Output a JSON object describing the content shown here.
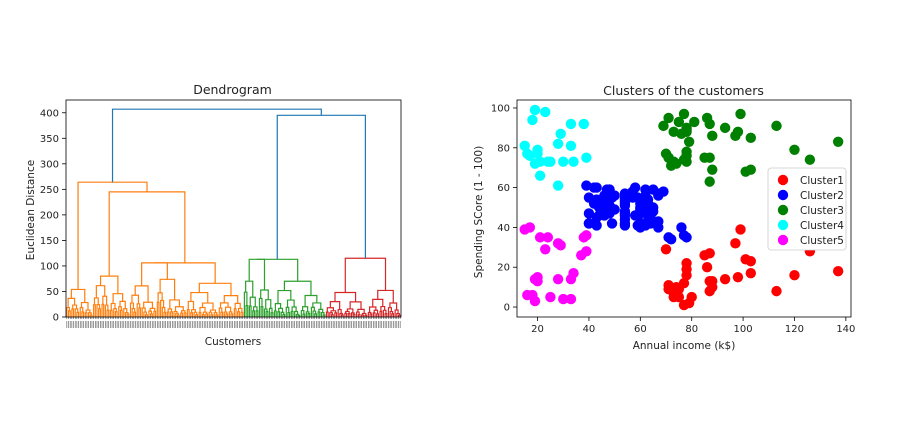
{
  "chart_data": [
    {
      "type": "dendrogram",
      "title": "Dendrogram",
      "xlabel": "Customers",
      "ylabel": "Euclidean Distance",
      "ylim": [
        0,
        425
      ],
      "yticks": [
        0,
        50,
        100,
        150,
        200,
        250,
        300,
        350,
        400
      ],
      "leaf_count": 200,
      "colors": {
        "orange": "#ff7f0e",
        "green": "#2ca02c",
        "red": "#d62728",
        "link": "#1f77b4"
      },
      "top_merges": [
        {
          "height": 407,
          "joins": [
            "orange-group",
            "green+red-group"
          ]
        },
        {
          "height": 395,
          "joins": [
            "green-group",
            "red-group"
          ]
        },
        {
          "height": 264,
          "joins": [
            "orange-left",
            "orange-right"
          ]
        },
        {
          "height": 245,
          "joins": [
            "orange-mid",
            "orange-right-right"
          ]
        },
        {
          "height": 113,
          "joins": [
            "green-left",
            "green-right"
          ]
        },
        {
          "height": 115,
          "joins": [
            "red-left",
            "red-right"
          ]
        }
      ]
    },
    {
      "type": "scatter",
      "title": "Clusters of the customers",
      "xlabel": "Annual income (k$)",
      "ylabel": "Spending SCore (1 - 100)",
      "xlim": [
        12,
        142
      ],
      "ylim": [
        -5,
        104
      ],
      "xticks": [
        20,
        40,
        60,
        80,
        100,
        120,
        140
      ],
      "yticks": [
        0,
        20,
        40,
        60,
        80,
        100
      ],
      "legend_position": "center-right",
      "series": [
        {
          "name": "Cluster1",
          "color": "#ff0000",
          "points": [
            [
              70,
              29
            ],
            [
              71,
              11
            ],
            [
              71,
              9
            ],
            [
              73,
              5
            ],
            [
              73,
              7
            ],
            [
              74,
              10
            ],
            [
              75,
              5
            ],
            [
              75,
              9
            ],
            [
              77,
              12
            ],
            [
              77,
              1
            ],
            [
              78,
              16
            ],
            [
              78,
              19
            ],
            [
              78,
              22
            ],
            [
              79,
              2
            ],
            [
              80,
              5
            ],
            [
              85,
              26
            ],
            [
              86,
              20
            ],
            [
              87,
              8
            ],
            [
              87,
              27
            ],
            [
              87,
              13
            ],
            [
              88,
              10
            ],
            [
              88,
              13
            ],
            [
              93,
              14
            ],
            [
              97,
              32
            ],
            [
              98,
              15
            ],
            [
              99,
              39
            ],
            [
              101,
              24
            ],
            [
              103,
              17
            ],
            [
              103,
              23
            ],
            [
              113,
              8
            ],
            [
              120,
              16
            ],
            [
              126,
              28
            ],
            [
              137,
              18
            ]
          ]
        },
        {
          "name": "Cluster2",
          "color": "#0000ff",
          "points": [
            [
              39,
              61
            ],
            [
              40,
              55
            ],
            [
              40,
              47
            ],
            [
              40,
              42
            ],
            [
              40,
              42
            ],
            [
              42,
              52
            ],
            [
              42,
              60
            ],
            [
              43,
              54
            ],
            [
              43,
              60
            ],
            [
              43,
              45
            ],
            [
              43,
              41
            ],
            [
              44,
              50
            ],
            [
              44,
              46
            ],
            [
              46,
              51
            ],
            [
              46,
              46
            ],
            [
              46,
              56
            ],
            [
              46,
              55
            ],
            [
              47,
              52
            ],
            [
              47,
              59
            ],
            [
              48,
              51
            ],
            [
              48,
              59
            ],
            [
              48,
              50
            ],
            [
              48,
              48
            ],
            [
              48,
              59
            ],
            [
              48,
              47
            ],
            [
              49,
              55
            ],
            [
              49,
              42
            ],
            [
              50,
              49
            ],
            [
              50,
              56
            ],
            [
              54,
              47
            ],
            [
              54,
              54
            ],
            [
              54,
              53
            ],
            [
              54,
              48
            ],
            [
              54,
              52
            ],
            [
              54,
              42
            ],
            [
              54,
              51
            ],
            [
              54,
              55
            ],
            [
              54,
              41
            ],
            [
              54,
              44
            ],
            [
              54,
              57
            ],
            [
              54,
              46
            ],
            [
              57,
              58
            ],
            [
              57,
              55
            ],
            [
              58,
              60
            ],
            [
              58,
              46
            ],
            [
              59,
              55
            ],
            [
              59,
              41
            ],
            [
              60,
              49
            ],
            [
              60,
              40
            ],
            [
              60,
              42
            ],
            [
              60,
              52
            ],
            [
              60,
              47
            ],
            [
              60,
              50
            ],
            [
              61,
              42
            ],
            [
              61,
              49
            ],
            [
              62,
              41
            ],
            [
              62,
              48
            ],
            [
              62,
              59
            ],
            [
              62,
              55
            ],
            [
              62,
              56
            ],
            [
              62,
              42
            ],
            [
              63,
              50
            ],
            [
              63,
              46
            ],
            [
              63,
              43
            ],
            [
              63,
              48
            ],
            [
              63,
              52
            ],
            [
              63,
              54
            ],
            [
              64,
              42
            ],
            [
              64,
              46
            ],
            [
              65,
              48
            ],
            [
              65,
              50
            ],
            [
              65,
              43
            ],
            [
              65,
              59
            ],
            [
              67,
              43
            ],
            [
              67,
              57
            ],
            [
              67,
              56
            ],
            [
              67,
              40
            ],
            [
              69,
              58
            ],
            [
              71,
              35
            ],
            [
              72,
              34
            ],
            [
              76,
              40
            ],
            [
              77,
              36
            ],
            [
              78,
              35
            ]
          ]
        },
        {
          "name": "Cluster3",
          "color": "#008000",
          "points": [
            [
              69,
              91
            ],
            [
              70,
              77
            ],
            [
              71,
              95
            ],
            [
              71,
              75
            ],
            [
              71,
              75
            ],
            [
              72,
              71
            ],
            [
              73,
              88
            ],
            [
              73,
              73
            ],
            [
              74,
              72
            ],
            [
              75,
              93
            ],
            [
              76,
              87
            ],
            [
              77,
              97
            ],
            [
              77,
              74
            ],
            [
              78,
              90
            ],
            [
              78,
              88
            ],
            [
              78,
              76
            ],
            [
              78,
              89
            ],
            [
              78,
              78
            ],
            [
              78,
              73
            ],
            [
              79,
              83
            ],
            [
              81,
              93
            ],
            [
              85,
              75
            ],
            [
              86,
              95
            ],
            [
              87,
              63
            ],
            [
              87,
              75
            ],
            [
              87,
              92
            ],
            [
              88,
              86
            ],
            [
              88,
              69
            ],
            [
              93,
              90
            ],
            [
              97,
              86
            ],
            [
              98,
              88
            ],
            [
              99,
              97
            ],
            [
              101,
              68
            ],
            [
              103,
              85
            ],
            [
              103,
              69
            ],
            [
              113,
              91
            ],
            [
              120,
              79
            ],
            [
              126,
              74
            ],
            [
              137,
              83
            ]
          ]
        },
        {
          "name": "Cluster4",
          "color": "#00ffff",
          "points": [
            [
              15,
              81
            ],
            [
              16,
              77
            ],
            [
              17,
              76
            ],
            [
              18,
              94
            ],
            [
              19,
              72
            ],
            [
              19,
              99
            ],
            [
              20,
              77
            ],
            [
              20,
              79
            ],
            [
              21,
              66
            ],
            [
              21,
              73
            ],
            [
              23,
              98
            ],
            [
              24,
              73
            ],
            [
              25,
              73
            ],
            [
              28,
              82
            ],
            [
              28,
              61
            ],
            [
              29,
              87
            ],
            [
              30,
              73
            ],
            [
              33,
              92
            ],
            [
              33,
              81
            ],
            [
              34,
              73
            ],
            [
              38,
              92
            ],
            [
              39,
              75
            ]
          ]
        },
        {
          "name": "Cluster5",
          "color": "#ff00ff",
          "points": [
            [
              15,
              39
            ],
            [
              16,
              6
            ],
            [
              17,
              40
            ],
            [
              18,
              6
            ],
            [
              19,
              3
            ],
            [
              19,
              14
            ],
            [
              20,
              15
            ],
            [
              20,
              13
            ],
            [
              21,
              35
            ],
            [
              23,
              29
            ],
            [
              24,
              35
            ],
            [
              25,
              5
            ],
            [
              28,
              14
            ],
            [
              28,
              32
            ],
            [
              29,
              31
            ],
            [
              30,
              4
            ],
            [
              33,
              4
            ],
            [
              33,
              14
            ],
            [
              34,
              17
            ],
            [
              37,
              26
            ],
            [
              38,
              35
            ],
            [
              39,
              36
            ],
            [
              39,
              28
            ]
          ]
        }
      ]
    }
  ]
}
